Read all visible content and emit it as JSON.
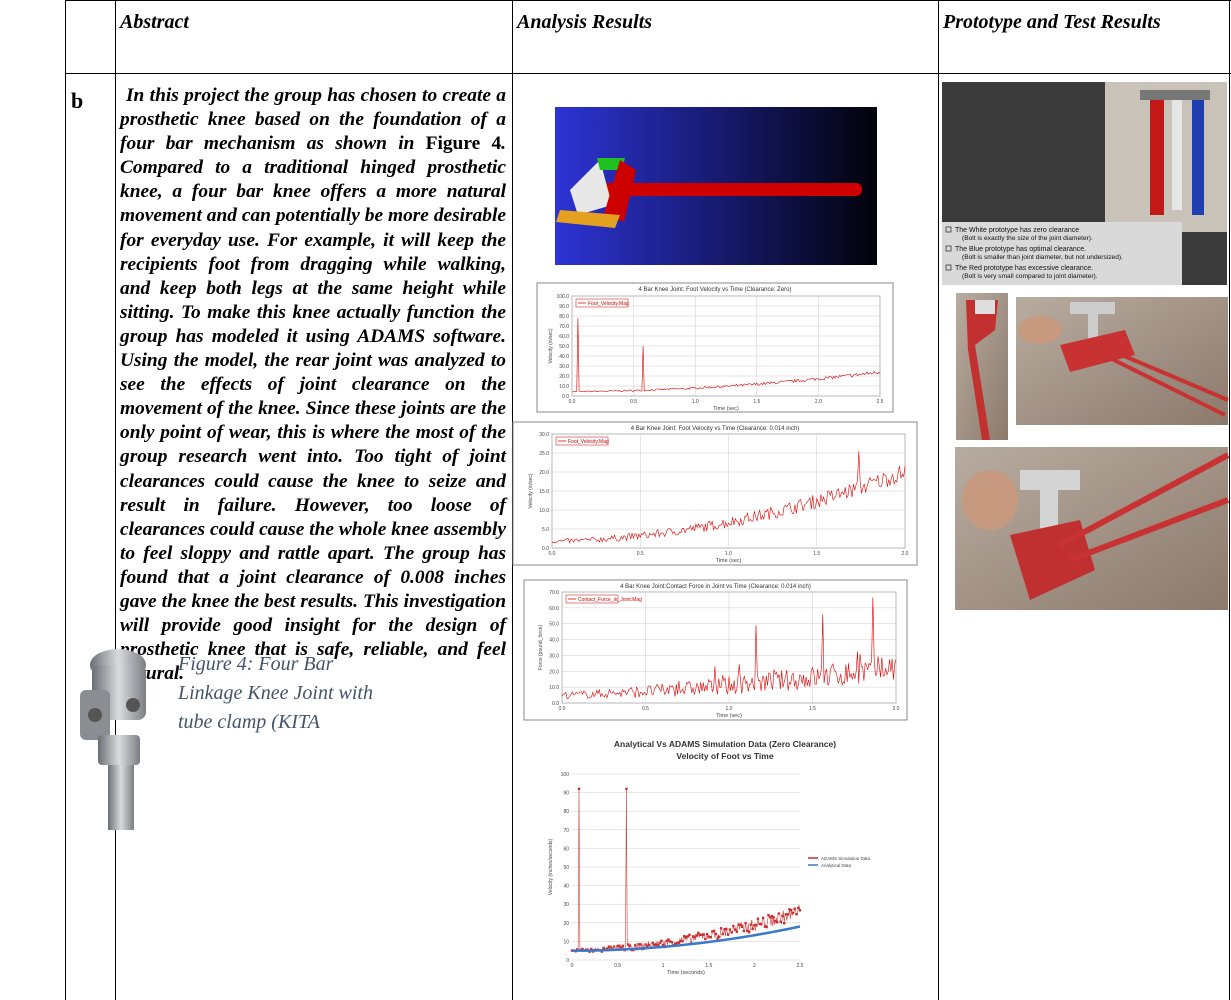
{
  "header": {
    "cells": [
      "Abstract",
      "Analysis Results",
      "Prototype and Test Results"
    ]
  },
  "row": {
    "label": "b",
    "abstract": {
      "before_ref": "In this project the group has chosen to create a prosthetic knee based on the foundation of a four bar mechanism as shown in",
      "ref": "Figure 4",
      "after_ref": ".  Compared to a traditional hinged prosthetic knee, a four bar knee offers a more natural movement and can potentially be more desirable for everyday use.  For example, it will keep the recipients foot from dragging while walking, and keep both legs at the same height while sitting.  To make this knee actually function the group has modeled it using ADAMS software.  Using the model, the rear joint was analyzed to see the effects of joint clearance on the movement of the knee. Since these joints are the only point of wear, this is where the most of the group research went into.  Too tight of joint clearances could cause the knee to seize and result in failure.  However, too loose of clearances could cause the whole knee assembly to feel sloppy and rattle apart.  The group has found that a joint clearance of 0.008 inches gave the knee the best results. This investigation will provide good insight for the design of prosthetic knee that is safe, reliable, and feel natural."
    },
    "figure_caption": "Figure 4: Four Bar Linkage Knee Joint with tube clamp (KITA",
    "analysis_charts": [
      {
        "title": "4 Bar Knee Joint: Foot Velocity vs Time (Clearance: Zero)",
        "legend": [
          "Foot_Velocity.Mag"
        ],
        "ylabel": "Velocity (in/sec)",
        "xlabel": "Time (sec)",
        "yticks": [
          "100.0",
          "90.0",
          "80.0",
          "70.0",
          "60.0",
          "50.0",
          "40.0",
          "30.0",
          "20.0",
          "10.0",
          "0.0"
        ],
        "xticks": [
          "0.0",
          "0.5",
          "1.0",
          "1.5",
          "2.0",
          "2.5"
        ]
      },
      {
        "title": "4 Bar Knee Joint: Foot Velocity vs Time (Clearance: 0.014 inch)",
        "legend": [
          "Foot_Velocity.Mag"
        ],
        "ylabel": "Velocity (in/sec)",
        "xlabel": "Time (sec)",
        "yticks": [
          "30.0",
          "25.0",
          "20.0",
          "15.0",
          "10.0",
          "5.0",
          "0.0"
        ],
        "xticks": [
          "0.0",
          "0.5",
          "1.0",
          "1.5",
          "2.0"
        ]
      },
      {
        "title": "4 Bar Knee Joint:Contact Force in Joint vs Time (Clearance: 0.014 inch)",
        "legend": [
          "Contact_Force_in_Joint.Mag"
        ],
        "ylabel": "Force (pound_force)",
        "xlabel": "Time (sec)",
        "yticks": [
          "70.0",
          "60.0",
          "50.0",
          "40.0",
          "30.0",
          "20.0",
          "10.0",
          "0.0"
        ],
        "xticks": [
          "0.0",
          "0.5",
          "1.0",
          "1.5",
          "2.0"
        ]
      },
      {
        "title": "Analytical Vs ADAMS Simulation Data (Zero Clearance)",
        "subtitle": "Velocity of Foot vs Time",
        "legend": [
          "ADAMS Simulation Data",
          "Analytical Data"
        ],
        "ylabel": "Velocity (inches/seconds)",
        "xlabel": "Time (seconds)",
        "yticks": [
          "100",
          "90",
          "80",
          "70",
          "60",
          "50",
          "40",
          "30",
          "20",
          "10",
          "0"
        ],
        "xticks": [
          "0",
          "0.5",
          "1",
          "1.5",
          "2",
          "2.5"
        ]
      }
    ],
    "prototype_slide": {
      "bullets": [
        {
          "text": "The White prototype has zero clearance",
          "sub": "(Bolt is exactly the size of the joint diameter)."
        },
        {
          "text": "The Blue prototype has optimal clearance.",
          "sub": "(Bolt is smaller than joint diameter, but not undersized)."
        },
        {
          "text": "The Red prototype has excessive clearance.",
          "sub": "(Bolt is very small compared to joint diameter)."
        }
      ]
    }
  }
}
